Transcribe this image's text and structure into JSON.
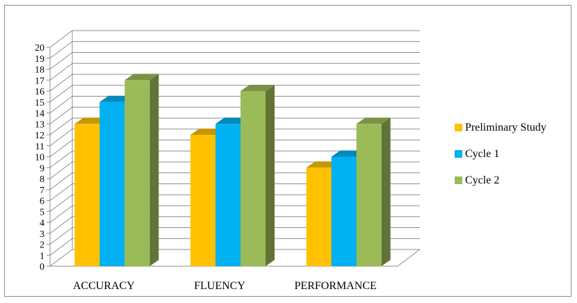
{
  "chart_data": {
    "type": "bar",
    "categories": [
      "ACCURACY",
      "FLUENCY",
      "PERFORMANCE"
    ],
    "series": [
      {
        "name": "Preliminary Study",
        "values": [
          13,
          12,
          9
        ],
        "color": "#FFC000"
      },
      {
        "name": "Cycle 1",
        "values": [
          15,
          13,
          10
        ],
        "color": "#00B0F0"
      },
      {
        "name": "Cycle 2",
        "values": [
          17,
          16,
          13
        ],
        "color": "#9BBB59"
      }
    ],
    "ylim": [
      0,
      20
    ],
    "ytick_step": 1,
    "grid": true,
    "legend_position": "right",
    "style": "3d-clustered-column"
  }
}
